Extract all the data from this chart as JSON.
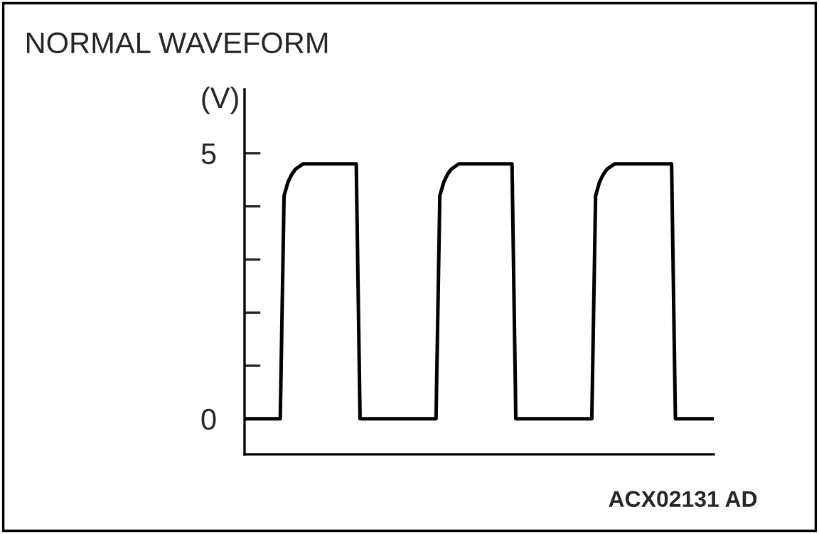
{
  "chart_data": {
    "type": "line",
    "title": "NORMAL WAVEFORM",
    "ylabel": "(V)",
    "annotations": [
      "ACX02131 AD"
    ],
    "categories": [
      null,
      null,
      null,
      null,
      null,
      null,
      null,
      null,
      null,
      null,
      null,
      null,
      null,
      null,
      null,
      null,
      null,
      null,
      null,
      null,
      null,
      null,
      null,
      null,
      null,
      null,
      null,
      null,
      null,
      null,
      null,
      null,
      null,
      null,
      null,
      null,
      null,
      null,
      null,
      null,
      null,
      null,
      null,
      null,
      null,
      null,
      null,
      null,
      null,
      null,
      null,
      null,
      null,
      null,
      null,
      null,
      null,
      null,
      null,
      null,
      null,
      null,
      null,
      null,
      null,
      null,
      null,
      null,
      null,
      null,
      null,
      null,
      null,
      null,
      null,
      null,
      null,
      null,
      null,
      null,
      null,
      null,
      null,
      null,
      null,
      null,
      null,
      null,
      null,
      null,
      null,
      null,
      null,
      null,
      null,
      null,
      null,
      null,
      null,
      null,
      null,
      null,
      null,
      null,
      null,
      null,
      null,
      null,
      null,
      null,
      null,
      null,
      null,
      null,
      null,
      null,
      null,
      null,
      null,
      null,
      null,
      null,
      null,
      null
    ],
    "series": [
      {
        "color": "#000000",
        "values": [
          0,
          0,
          0,
          0,
          0,
          0,
          0,
          0,
          0,
          0,
          4.2,
          4.45,
          4.6,
          4.7,
          4.75,
          4.8,
          4.8,
          4.8,
          4.8,
          4.8,
          4.8,
          4.8,
          4.8,
          4.8,
          4.8,
          4.8,
          4.8,
          4.8,
          4.8,
          4.8,
          0,
          0,
          0,
          0,
          0,
          0,
          0,
          0,
          0,
          0,
          0,
          0,
          0,
          0,
          0,
          0,
          0,
          0,
          0,
          0,
          0,
          4.2,
          4.45,
          4.6,
          4.7,
          4.75,
          4.8,
          4.8,
          4.8,
          4.8,
          4.8,
          4.8,
          4.8,
          4.8,
          4.8,
          4.8,
          4.8,
          4.8,
          4.8,
          4.8,
          4.8,
          0,
          0,
          0,
          0,
          0,
          0,
          0,
          0,
          0,
          0,
          0,
          0,
          0,
          0,
          0,
          0,
          0,
          0,
          0,
          0,
          0,
          4.2,
          4.45,
          4.6,
          4.7,
          4.75,
          4.8,
          4.8,
          4.8,
          4.8,
          4.8,
          4.8,
          4.8,
          4.8,
          4.8,
          4.8,
          4.8,
          4.8,
          4.8,
          4.8,
          4.8,
          4.8,
          0,
          0,
          0,
          0,
          0,
          0,
          0,
          0,
          0,
          0,
          0
        ]
      }
    ],
    "ylim": [
      -0.67,
      6.2
    ],
    "yticks": [
      0,
      {
        "value": 1,
        "label": null
      },
      {
        "value": 2,
        "label": null
      },
      {
        "value": 3,
        "label": null
      },
      {
        "value": 4,
        "label": null
      },
      5
    ],
    "tick_labels": "y",
    "grid": false,
    "legend": false,
    "marker": "none",
    "line_style": "solid"
  }
}
